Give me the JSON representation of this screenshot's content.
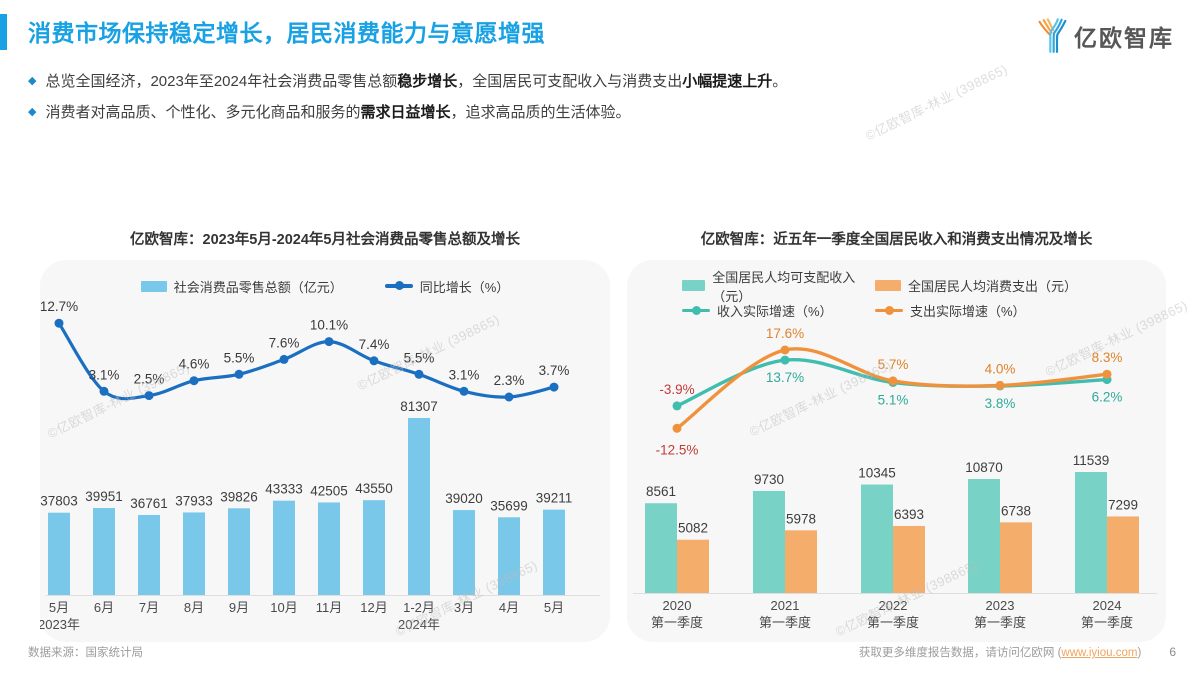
{
  "page": {
    "background": "#FFFFFF",
    "accent_color": "#18A1E3"
  },
  "header": {
    "title": "消费市场保持稳定增长，居民消费能力与意愿增强",
    "logo_text": "亿欧智库",
    "bullet_icon": "◆",
    "bullets": [
      {
        "pre": "总览全国经济，2023年至2024年社会消费品零售总额",
        "bold1": "稳步增长",
        "mid": "，全国居民可支配收入与消费支出",
        "bold2": "小幅提速上升",
        "post": "。"
      },
      {
        "pre": "消费者对高品质、个性化、多元化商品和服务的",
        "bold1": "需求日益增长",
        "mid": "，追求高品质的生活体验。",
        "bold2": "",
        "post": ""
      }
    ]
  },
  "chart_data": [
    {
      "type": "bar+line",
      "title": "亿欧智库：2023年5月-2024年5月社会消费品零售总额及增长",
      "categories": [
        "5月",
        "6月",
        "7月",
        "8月",
        "9月",
        "10月",
        "11月",
        "12月",
        "1-2月",
        "3月",
        "4月",
        "5月"
      ],
      "year_marks": [
        {
          "index": 0,
          "label": "2023年"
        },
        {
          "index": 8,
          "label": "2024年"
        }
      ],
      "bars": {
        "name": "社会消费品零售总额（亿元）",
        "color": "#79C8E9",
        "values": [
          37803,
          39951,
          36761,
          37933,
          39826,
          43333,
          42505,
          43550,
          81307,
          39020,
          35699,
          39211
        ]
      },
      "line": {
        "name": "同比增长（%）",
        "color": "#1B6FC0",
        "label_color": "#3A3A3A",
        "unit": "%",
        "values": [
          12.7,
          3.1,
          2.5,
          4.6,
          5.5,
          7.6,
          10.1,
          7.4,
          5.5,
          3.1,
          2.3,
          3.7
        ]
      },
      "value_label_color": "#3D3D3D",
      "x_label_color": "#4A4A4A",
      "legend_position": "top",
      "axis": {
        "x_visible": true,
        "y_visible": false,
        "gridlines": false
      }
    },
    {
      "type": "grouped-bar+lines",
      "title": "亿欧智库：近五年一季度全国居民收入和消费支出情况及增长",
      "categories": [
        "2020",
        "2021",
        "2022",
        "2023",
        "2024"
      ],
      "category_sub_label": "第一季度",
      "bar_series": [
        {
          "name": "全国居民人均可支配收入（元）",
          "color": "#78D3C6",
          "values": [
            8561,
            9730,
            10345,
            10870,
            11539
          ]
        },
        {
          "name": "全国居民人均消费支出（元）",
          "color": "#F5AD6B",
          "values": [
            5082,
            5978,
            6393,
            6738,
            7299
          ]
        }
      ],
      "line_series": [
        {
          "name": "收入实际增速（%）",
          "color": "#40BDAE",
          "label_color": "#2FA99A",
          "unit": "%",
          "values": [
            -3.9,
            13.7,
            5.1,
            3.8,
            6.2
          ]
        },
        {
          "name": "支出实际增速（%）",
          "color": "#F0923C",
          "label_color": "#E08229",
          "unit": "%",
          "values": [
            -12.5,
            17.6,
            5.7,
            4.0,
            8.3
          ]
        }
      ],
      "negative_label_color": "#C23A36",
      "value_label_color": "#3D3D3D",
      "x_label_color": "#4A4A4A",
      "legend_position": "top",
      "axis": {
        "x_visible": true,
        "y_visible": false,
        "gridlines": false
      }
    }
  ],
  "watermark": {
    "text": "©亿欧智库-林业 (398865)"
  },
  "footer": {
    "source": "数据来源：国家统计局",
    "cta_pre": "获取更多维度报告数据，请访问亿欧网 (",
    "cta_link": "www.iyiou.com",
    "cta_post": ")",
    "page_number": "6"
  }
}
